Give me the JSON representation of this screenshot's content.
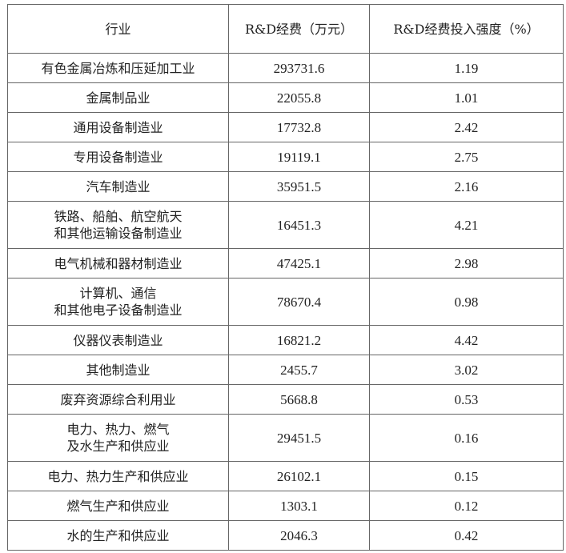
{
  "table": {
    "headers": [
      "行业",
      "R&D经费（万元）",
      "R&D经费投入强度（%）"
    ],
    "rows": [
      {
        "industry": [
          "有色金属冶炼和压延加工业"
        ],
        "expenditure": "293731.6",
        "intensity": "1.19"
      },
      {
        "industry": [
          "金属制品业"
        ],
        "expenditure": "22055.8",
        "intensity": "1.01"
      },
      {
        "industry": [
          "通用设备制造业"
        ],
        "expenditure": "17732.8",
        "intensity": "2.42"
      },
      {
        "industry": [
          "专用设备制造业"
        ],
        "expenditure": "19119.1",
        "intensity": "2.75"
      },
      {
        "industry": [
          "汽车制造业"
        ],
        "expenditure": "35951.5",
        "intensity": "2.16"
      },
      {
        "industry": [
          "铁路、船舶、航空航天",
          "和其他运输设备制造业"
        ],
        "expenditure": "16451.3",
        "intensity": "4.21"
      },
      {
        "industry": [
          "电气机械和器材制造业"
        ],
        "expenditure": "47425.1",
        "intensity": "2.98"
      },
      {
        "industry": [
          "计算机、通信",
          "和其他电子设备制造业"
        ],
        "expenditure": "78670.4",
        "intensity": "0.98"
      },
      {
        "industry": [
          "仪器仪表制造业"
        ],
        "expenditure": "16821.2",
        "intensity": "4.42"
      },
      {
        "industry": [
          "其他制造业"
        ],
        "expenditure": "2455.7",
        "intensity": "3.02"
      },
      {
        "industry": [
          "废弃资源综合利用业"
        ],
        "expenditure": "5668.8",
        "intensity": "0.53"
      },
      {
        "industry": [
          "电力、热力、燃气",
          "及水生产和供应业"
        ],
        "expenditure": "29451.5",
        "intensity": "0.16"
      },
      {
        "industry": [
          "电力、热力生产和供应业"
        ],
        "expenditure": "26102.1",
        "intensity": "0.15"
      },
      {
        "industry": [
          "燃气生产和供应业"
        ],
        "expenditure": "1303.1",
        "intensity": "0.12"
      },
      {
        "industry": [
          "水的生产和供应业"
        ],
        "expenditure": "2046.3",
        "intensity": "0.42"
      }
    ]
  }
}
